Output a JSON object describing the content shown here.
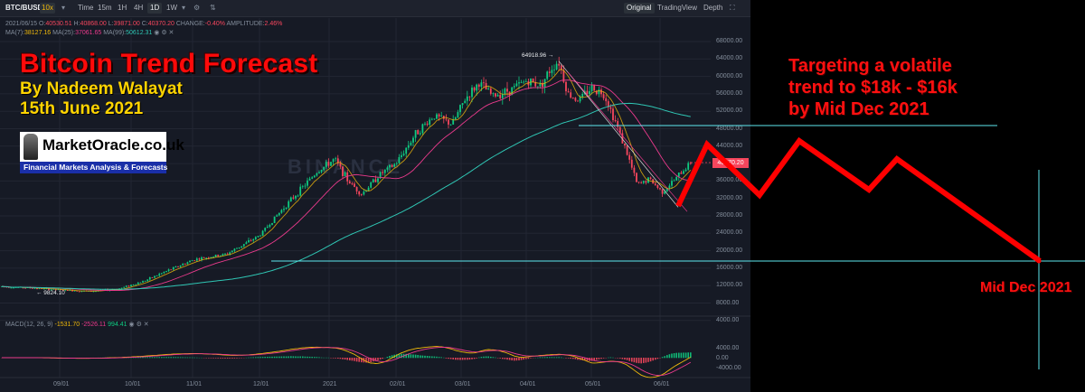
{
  "toolbar": {
    "symbol": "BTC/BUSD",
    "leverage": "10x",
    "intervals": [
      "Time",
      "15m",
      "1H",
      "4H",
      "1D",
      "1W"
    ],
    "active_interval": "1D",
    "views": [
      "Original",
      "TradingView",
      "Depth"
    ],
    "active_view": "Original"
  },
  "info": {
    "ohlc_prefix": "2021/06/15",
    "open_label": "O:",
    "open": "40530.51",
    "high_label": "H:",
    "high": "40868.00",
    "low_label": "L:",
    "low": "39871.00",
    "close_label": "C:",
    "close": "40370.20",
    "change_label": "CHANGE:",
    "change": "-0.40%",
    "amp_label": "AMPLITUDE:",
    "amplitude": "2.46%",
    "ma7_label": "MA(7):",
    "ma7": "38127.16",
    "ma25_label": "MA(25):",
    "ma25": "37061.65",
    "ma99_label": "MA(99):",
    "ma99": "50612.31",
    "macd_label": "MACD(12, 26, 9)",
    "macd1": "-1531.70",
    "macd2": "-2526.11",
    "macd3": "994.41"
  },
  "axis": {
    "price_ticks": [
      "68000.00",
      "64000.00",
      "60000.00",
      "56000.00",
      "52000.00",
      "48000.00",
      "44000.00",
      "40000.00",
      "36000.00",
      "32000.00",
      "28000.00",
      "24000.00",
      "20000.00",
      "16000.00",
      "12000.00",
      "8000.00",
      "4000.00"
    ],
    "macd_ticks": [
      "4000.00",
      "0.00",
      "-4000.00"
    ],
    "time_labels": [
      "09/01",
      "10/01",
      "11/01",
      "12/01",
      "2021",
      "02/01",
      "03/01",
      "04/01",
      "05/01",
      "06/01"
    ]
  },
  "markers": {
    "high": "64918.96 →",
    "low": "← 9824.10",
    "current": "40370.20"
  },
  "watermark": "BINANCE",
  "overlay": {
    "title": "Bitcoin Trend Forecast",
    "author": "By Nadeem Walayat",
    "date": "15th June 2021",
    "logo_name": "MarketOracle.co.uk",
    "logo_tagline": "Financial Markets Analysis & Forecasts",
    "target_lines": [
      "Targeting a volatile",
      "trend to $18k - $16k",
      "by Mid Dec 2021"
    ],
    "target_date_label": "Mid Dec 2021"
  },
  "colors": {
    "background": "#161a25",
    "up": "#0ecb81",
    "down": "#f6465d",
    "forecast": "#ff0000",
    "guide_lines": "#5ee8ee",
    "ma7": "#f0b90b",
    "ma25": "#ea3a8c",
    "ma99": "#2fc6b4"
  }
}
